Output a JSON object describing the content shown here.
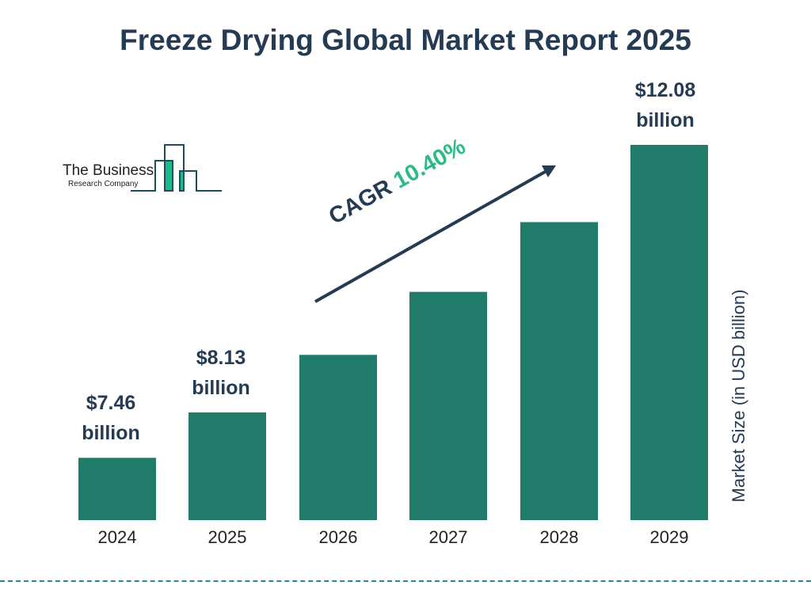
{
  "title": "Freeze Drying Global Market Report 2025",
  "logo": {
    "line1": "The Business",
    "line2": "Research Company"
  },
  "cagr": {
    "label": "CAGR",
    "value": "10.40%"
  },
  "colors": {
    "bar": "#217b6b",
    "title": "#243b53",
    "cagr": "#2dbb85",
    "logo_accent": "#1dbb8a"
  },
  "chart_data": {
    "type": "bar",
    "title": "Freeze Drying Global Market Report 2025",
    "categories": [
      "2024",
      "2025",
      "2026",
      "2027",
      "2028",
      "2029"
    ],
    "values": [
      7.46,
      8.13,
      8.98,
      9.91,
      10.94,
      12.08
    ],
    "data_labels": [
      {
        "index": 0,
        "line1": "$7.46",
        "line2": "billion"
      },
      {
        "index": 1,
        "line1": "$8.13",
        "line2": "billion"
      },
      {
        "index": 5,
        "line1": "$12.08",
        "line2": "billion"
      }
    ],
    "xlabel": "",
    "ylabel": "Market Size (in USD billion)",
    "ylim": [
      6.54,
      12.08
    ],
    "grid": false,
    "legend": "none"
  }
}
